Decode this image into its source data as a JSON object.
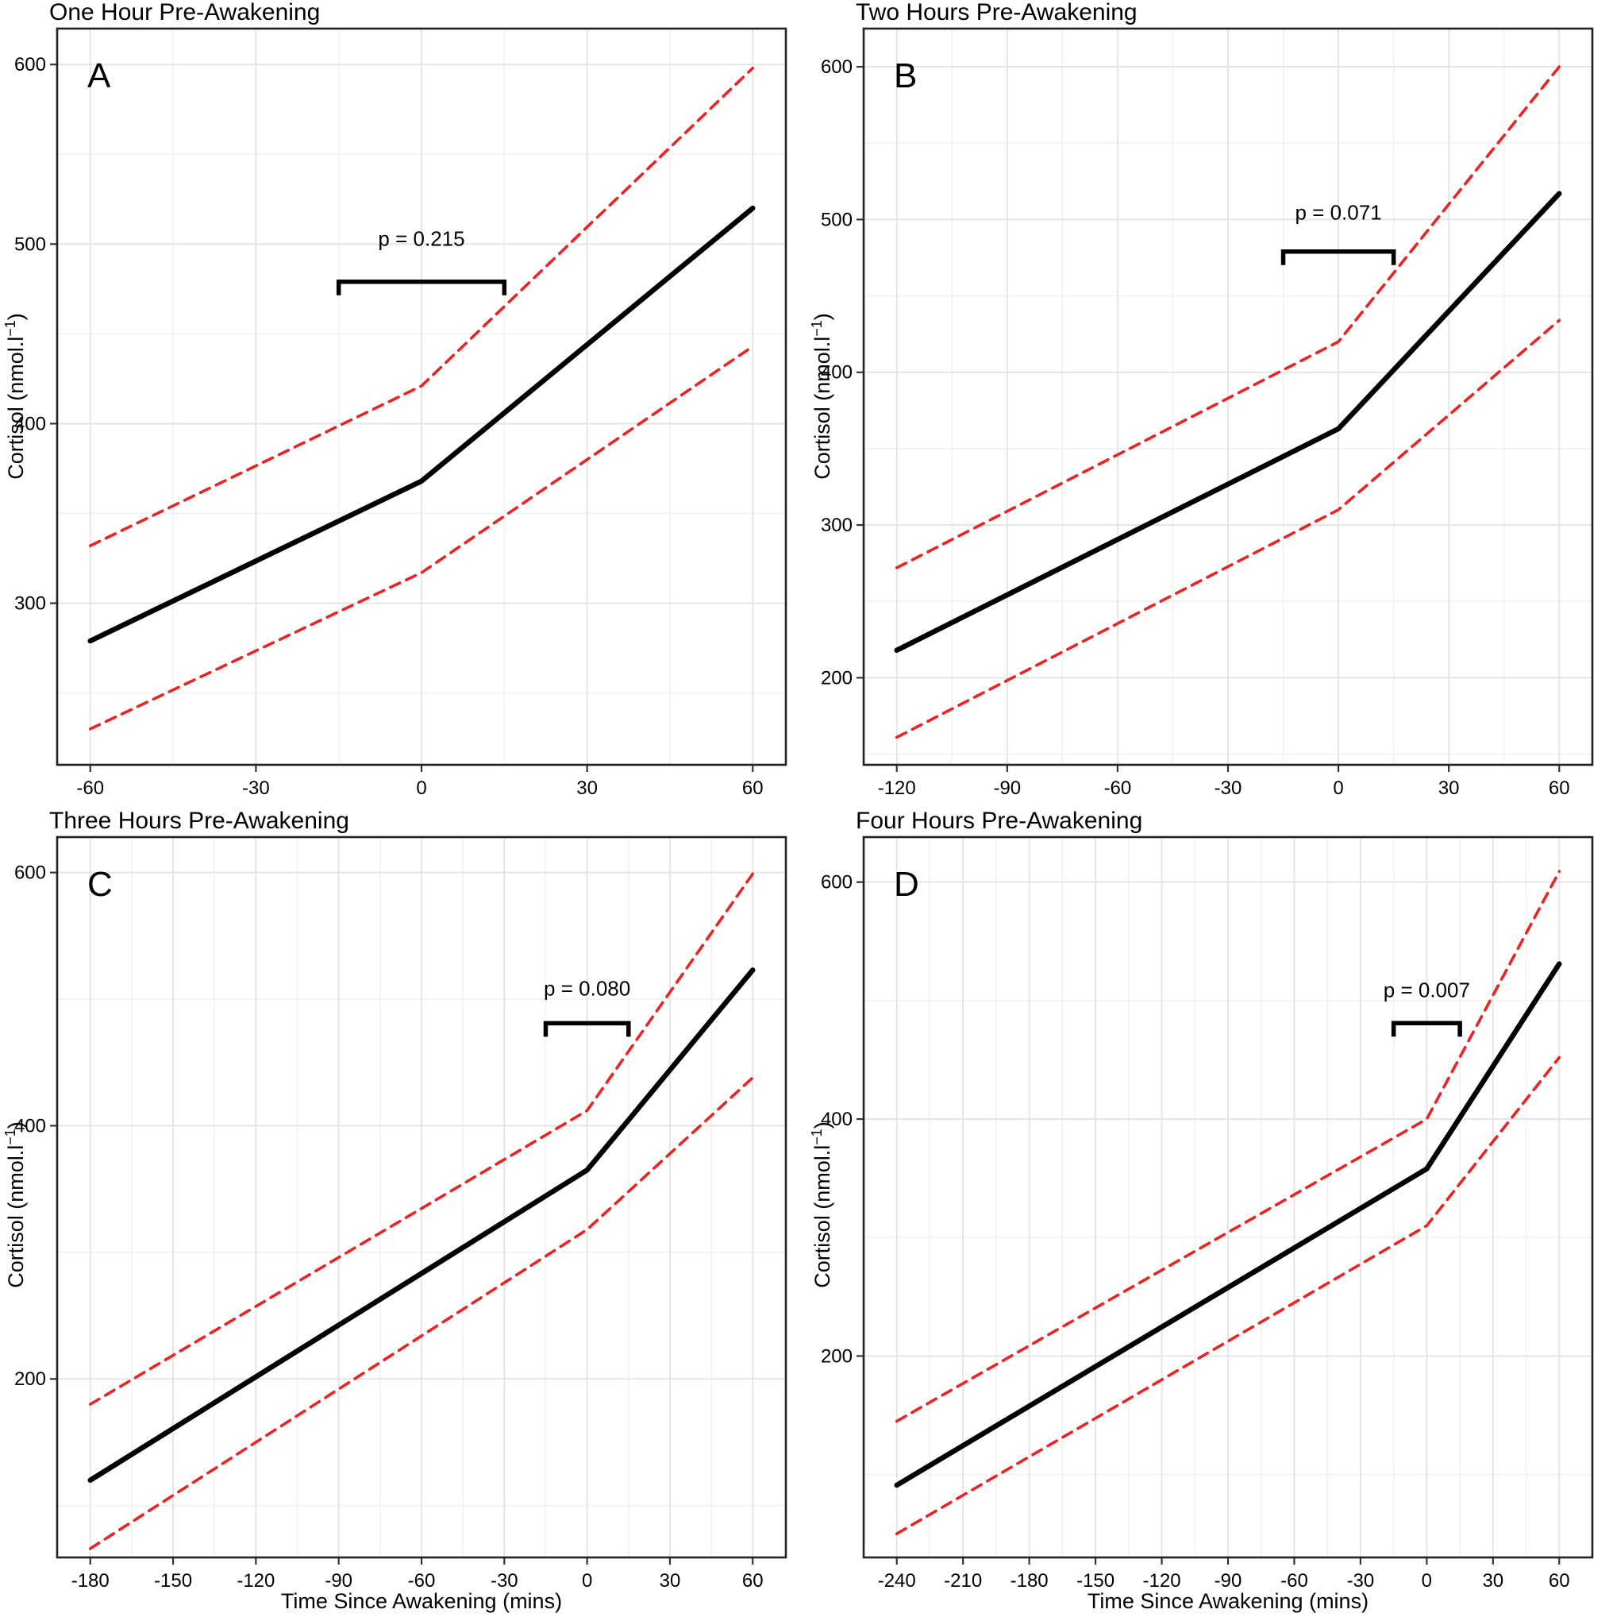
{
  "figure": {
    "x_axis_label": "Time Since Awakening (mins)",
    "y_axis_label": "Cortisol (nmol.l⁻¹)",
    "y_axis_label_base": "Cortisol (nmol.l",
    "y_axis_label_sup": "−1",
    "y_axis_label_close": ")",
    "colors": {
      "mean_line": "#000000",
      "ci_line": "#ee2222",
      "major_grid": "#e3e3e3",
      "minor_grid": "#f1f1f1",
      "panel_border": "#222222",
      "text": "#000000"
    }
  },
  "chart_data": [
    {
      "id": "A",
      "type": "line",
      "title": "One Hour Pre-Awakening",
      "p_label": "p = 0.215",
      "x_ticks": [
        -60,
        -30,
        0,
        30,
        60
      ],
      "y_ticks": [
        300,
        400,
        500,
        600
      ],
      "xlim": [
        -66,
        66
      ],
      "ylim": [
        210,
        620
      ],
      "x_minor_step": 15,
      "y_minor_step": 50,
      "series": [
        {
          "name": "mean",
          "style": "solid",
          "x": [
            -60,
            0,
            60
          ],
          "y": [
            279,
            368,
            520
          ]
        },
        {
          "name": "upper_ci",
          "style": "dashed",
          "x": [
            -60,
            0,
            60
          ],
          "y": [
            332,
            421,
            598
          ]
        },
        {
          "name": "lower_ci",
          "style": "dashed",
          "x": [
            -60,
            0,
            60
          ],
          "y": [
            230,
            317,
            443
          ]
        }
      ],
      "bracket": {
        "x1": -15,
        "x2": 15,
        "y": 479,
        "label_y": 499
      }
    },
    {
      "id": "B",
      "type": "line",
      "title": "Two Hours Pre-Awakening",
      "p_label": "p = 0.071",
      "x_ticks": [
        -120,
        -90,
        -60,
        -30,
        0,
        30,
        60
      ],
      "y_ticks": [
        200,
        300,
        400,
        500,
        600
      ],
      "xlim": [
        -129,
        69
      ],
      "ylim": [
        143,
        625
      ],
      "x_minor_step": 15,
      "y_minor_step": 50,
      "series": [
        {
          "name": "mean",
          "style": "solid",
          "x": [
            -120,
            0,
            60
          ],
          "y": [
            218,
            363,
            517
          ]
        },
        {
          "name": "upper_ci",
          "style": "dashed",
          "x": [
            -120,
            0,
            60
          ],
          "y": [
            272,
            420,
            600
          ]
        },
        {
          "name": "lower_ci",
          "style": "dashed",
          "x": [
            -120,
            0,
            60
          ],
          "y": [
            161,
            310,
            434
          ]
        }
      ],
      "bracket": {
        "x1": -15,
        "x2": 15,
        "y": 479,
        "label_y": 500
      }
    },
    {
      "id": "C",
      "type": "line",
      "title": "Three Hours Pre-Awakening",
      "p_label": "p = 0.080",
      "x_ticks": [
        -180,
        -150,
        -120,
        -90,
        -60,
        -30,
        0,
        30,
        60
      ],
      "y_ticks": [
        200,
        400,
        600
      ],
      "xlim": [
        -192,
        72
      ],
      "ylim": [
        59,
        628
      ],
      "x_minor_step": 15,
      "y_minor_step": 100,
      "series": [
        {
          "name": "mean",
          "style": "solid",
          "x": [
            -180,
            0,
            60
          ],
          "y": [
            120,
            365,
            523
          ]
        },
        {
          "name": "upper_ci",
          "style": "dashed",
          "x": [
            -180,
            0,
            60
          ],
          "y": [
            180,
            412,
            599
          ]
        },
        {
          "name": "lower_ci",
          "style": "dashed",
          "x": [
            -180,
            0,
            60
          ],
          "y": [
            66,
            318,
            438
          ]
        }
      ],
      "bracket": {
        "x1": -15,
        "x2": 15,
        "y": 481,
        "label_y": 503
      }
    },
    {
      "id": "D",
      "type": "line",
      "title": "Four Hours Pre-Awakening",
      "p_label": "p = 0.007",
      "x_ticks": [
        -240,
        -210,
        -180,
        -150,
        -120,
        -90,
        -60,
        -30,
        0,
        30,
        60
      ],
      "y_ticks": [
        200,
        400,
        600
      ],
      "xlim": [
        -255,
        75
      ],
      "ylim": [
        30,
        638
      ],
      "x_minor_step": 15,
      "y_minor_step": 100,
      "series": [
        {
          "name": "mean",
          "style": "solid",
          "x": [
            -240,
            0,
            60
          ],
          "y": [
            91,
            358,
            531
          ]
        },
        {
          "name": "upper_ci",
          "style": "dashed",
          "x": [
            -240,
            0,
            60
          ],
          "y": [
            145,
            400,
            609
          ]
        },
        {
          "name": "lower_ci",
          "style": "dashed",
          "x": [
            -240,
            0,
            60
          ],
          "y": [
            50,
            310,
            452
          ]
        }
      ],
      "bracket": {
        "x1": -15,
        "x2": 15,
        "y": 481,
        "label_y": 503
      }
    }
  ]
}
